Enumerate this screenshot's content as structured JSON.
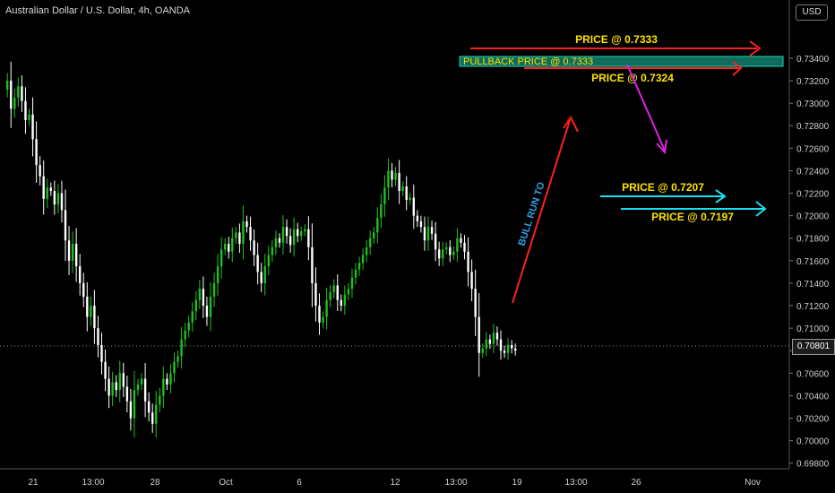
{
  "header": {
    "title": "Australian Dollar / U.S. Dollar, 4h, OANDA",
    "currency_button": "USD"
  },
  "current_price": "0.70801",
  "colors": {
    "background": "#000000",
    "up": "#1ec21e",
    "down": "#ffffff",
    "arrow_red": "#ff2020",
    "arrow_cyan": "#18e0f0",
    "arrow_magenta": "#e020e0",
    "label_yellow": "#ffe000",
    "zone_fill": "#0f6b5a",
    "run_label": "#2aa3e8"
  },
  "chart_data": {
    "type": "candlestick",
    "symbol": "AUDUSD",
    "interval": "4h",
    "ylim": [
      0.6975,
      0.7375
    ],
    "y_ticks": [
      "0.73400",
      "0.73200",
      "0.73000",
      "0.72800",
      "0.72600",
      "0.72400",
      "0.72200",
      "0.72000",
      "0.71800",
      "0.71600",
      "0.71400",
      "0.71200",
      "0.71000",
      "0.70800",
      "0.70600",
      "0.70400",
      "0.70200",
      "0.70000",
      "0.69800"
    ],
    "x_ticks": [
      "21",
      "13:00",
      "28",
      "Oct",
      "6",
      "12",
      "13:00",
      "19",
      "13:00",
      "26",
      "Nov"
    ],
    "close": [
      0.732,
      0.7295,
      0.7305,
      0.7315,
      0.7302,
      0.7285,
      0.729,
      0.7268,
      0.7245,
      0.7235,
      0.7215,
      0.7225,
      0.7222,
      0.721,
      0.722,
      0.7205,
      0.7178,
      0.716,
      0.7175,
      0.7155,
      0.714,
      0.7128,
      0.711,
      0.712,
      0.71,
      0.7085,
      0.707,
      0.7055,
      0.704,
      0.7052,
      0.7045,
      0.706,
      0.7048,
      0.7035,
      0.702,
      0.7045,
      0.705,
      0.7055,
      0.7035,
      0.7025,
      0.7015,
      0.7032,
      0.704,
      0.7055,
      0.705,
      0.706,
      0.707,
      0.7075,
      0.709,
      0.7098,
      0.7105,
      0.7115,
      0.7125,
      0.7135,
      0.712,
      0.711,
      0.7128,
      0.714,
      0.7155,
      0.717,
      0.7175,
      0.7168,
      0.718,
      0.7185,
      0.7175,
      0.7195,
      0.719,
      0.7178,
      0.7165,
      0.715,
      0.714,
      0.7155,
      0.7165,
      0.7172,
      0.718,
      0.7176,
      0.719,
      0.7182,
      0.7174,
      0.7188,
      0.7182,
      0.7186,
      0.7188,
      0.7172,
      0.714,
      0.712,
      0.7105,
      0.711,
      0.7125,
      0.7132,
      0.7138,
      0.7125,
      0.712,
      0.713,
      0.7135,
      0.7145,
      0.7152,
      0.7158,
      0.7165,
      0.7172,
      0.718,
      0.7185,
      0.7198,
      0.721,
      0.7225,
      0.724,
      0.7232,
      0.7238,
      0.7222,
      0.7226,
      0.7214,
      0.7216,
      0.72,
      0.7195,
      0.719,
      0.7178,
      0.719,
      0.7184,
      0.717,
      0.7162,
      0.717,
      0.7172,
      0.7165,
      0.7168,
      0.718,
      0.7176,
      0.7168,
      0.715,
      0.7135,
      0.711,
      0.7078,
      0.7082,
      0.709,
      0.7086,
      0.7096,
      0.709,
      0.708,
      0.7078,
      0.7085,
      0.7082,
      0.708
    ],
    "annotations": [
      {
        "text": "PRICE @ 0.7333",
        "color": "yellow",
        "arrow": "red"
      },
      {
        "text": "PULLBACK PRICE @ 0.7333",
        "color": "yellow",
        "box": "zone"
      },
      {
        "text": "PRICE @ 0.7324",
        "color": "yellow",
        "arrow": "red"
      },
      {
        "text": "BULL RUN TO",
        "color": "blue",
        "arrow": "red"
      },
      {
        "text": "PRICE @ 0.7207",
        "color": "yellow",
        "arrow": "cyan"
      },
      {
        "text": "PRICE @ 0.7197",
        "color": "yellow",
        "arrow": "cyan"
      }
    ],
    "grid": false
  }
}
